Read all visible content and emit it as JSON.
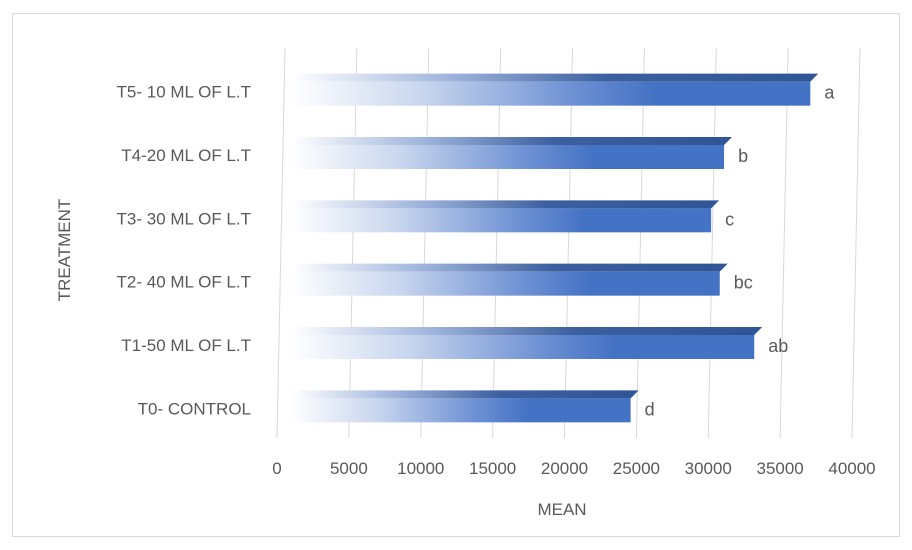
{
  "chart_data": {
    "type": "bar",
    "orientation": "horizontal",
    "title": "",
    "xlabel": "MEAN",
    "ylabel": "TREATMENT",
    "xlim": [
      0,
      40000
    ],
    "x_ticks": [
      0,
      5000,
      10000,
      15000,
      20000,
      25000,
      30000,
      35000,
      40000
    ],
    "grid": "vertical",
    "categories": [
      "T0- CONTROL",
      "T1-50 ML OF L.T",
      "T2- 40 ML OF L.T",
      "T3- 30 ML OF L.T",
      "T4-20 ML OF L.T",
      "T5- 10 ML OF L.T"
    ],
    "values": [
      24600,
      33200,
      30800,
      30200,
      31100,
      37100
    ],
    "data_labels": [
      "d",
      "ab",
      "bc",
      "c",
      "b",
      "a"
    ],
    "colors": {
      "bar": "#4472c4",
      "bar_dark": "#2f5597",
      "grid": "#d9d9d9",
      "text": "#595959"
    }
  }
}
